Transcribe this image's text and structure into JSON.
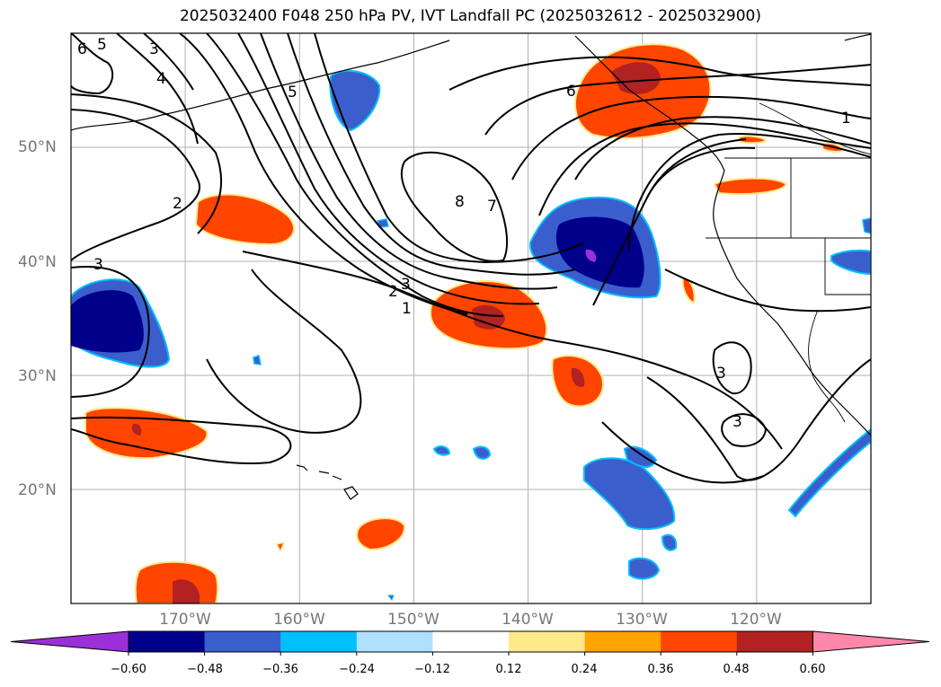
{
  "title": "2025032400 F048 250 hPa PV, IVT Landfall PC (2025032612 - 2025032900)",
  "map": {
    "projection": "PlateCarree",
    "lon_range": [
      -180,
      -110
    ],
    "lat_range": [
      10,
      60
    ],
    "gridlines": true
  },
  "lat_labels": [
    "50°N",
    "40°N",
    "30°N",
    "20°N"
  ],
  "lon_labels": [
    "170°W",
    "160°W",
    "150°W",
    "140°W",
    "130°W",
    "120°W"
  ],
  "contour_labels": [
    "6",
    "5",
    "3",
    "4",
    "5",
    "2",
    "8",
    "7",
    "6",
    "1",
    "3",
    "2",
    "3",
    "1",
    "3",
    "3"
  ],
  "colorbar": {
    "orientation": "horizontal",
    "extend": "both",
    "colors": [
      "#9b30d9",
      "#00008b",
      "#3a5fcd",
      "#00bfff",
      "#b0e0ff",
      "#ffffff",
      "#ffe98a",
      "#ffa500",
      "#ff4500",
      "#b22222",
      "#ff88aa"
    ],
    "tick_labels": [
      "−0.60",
      "−0.48",
      "−0.36",
      "−0.24",
      "−0.12",
      "0.12",
      "0.24",
      "0.36",
      "0.48",
      "0.60"
    ]
  }
}
